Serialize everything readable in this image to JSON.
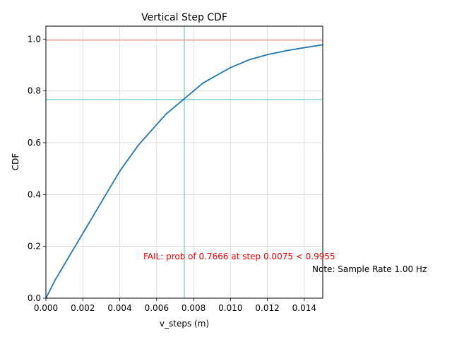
{
  "chart_data": {
    "type": "line",
    "title": "Vertical Step CDF",
    "xlabel": "v_steps (m)",
    "ylabel": "CDF",
    "xlim": [
      0,
      0.015
    ],
    "ylim": [
      0,
      1.05
    ],
    "grid": true,
    "x_ticks": [
      "0.000",
      "0.002",
      "0.004",
      "0.006",
      "0.008",
      "0.010",
      "0.012",
      "0.014"
    ],
    "x_tick_values": [
      0,
      0.002,
      0.004,
      0.006,
      0.008,
      0.01,
      0.012,
      0.014
    ],
    "y_ticks": [
      "0.0",
      "0.2",
      "0.4",
      "0.6",
      "0.8",
      "1.0"
    ],
    "y_tick_values": [
      0,
      0.2,
      0.4,
      0.6,
      0.8,
      1.0
    ],
    "series": [
      {
        "color": "#1f77b4",
        "x": [
          0,
          0.0005,
          0.001,
          0.0015,
          0.002,
          0.0025,
          0.003,
          0.0035,
          0.004,
          0.0045,
          0.005,
          0.0055,
          0.006,
          0.0065,
          0.007,
          0.0075,
          0.008,
          0.0085,
          0.009,
          0.0095,
          0.01,
          0.011,
          0.012,
          0.013,
          0.014,
          0.015
        ],
        "y": [
          0,
          0.07,
          0.13,
          0.19,
          0.25,
          0.31,
          0.37,
          0.43,
          0.49,
          0.54,
          0.59,
          0.63,
          0.67,
          0.71,
          0.74,
          0.77,
          0.8,
          0.83,
          0.85,
          0.87,
          0.89,
          0.92,
          0.94,
          0.955,
          0.967,
          0.978
        ]
      }
    ],
    "reference_lines": [
      {
        "orientation": "horizontal",
        "value": 0.9955,
        "color": "#f08080"
      },
      {
        "orientation": "horizontal",
        "value": 0.7666,
        "color": "#5bc0cc"
      },
      {
        "orientation": "vertical",
        "value": 0.0075,
        "color": "#5bc0cc"
      }
    ],
    "annotations": [
      {
        "text": "FAIL: prob of 0.7666 at step 0.0075 < 0.9955",
        "color": "#ff0000"
      },
      {
        "text": "Note: Sample Rate 1.00 Hz",
        "color": "#000000"
      }
    ]
  }
}
